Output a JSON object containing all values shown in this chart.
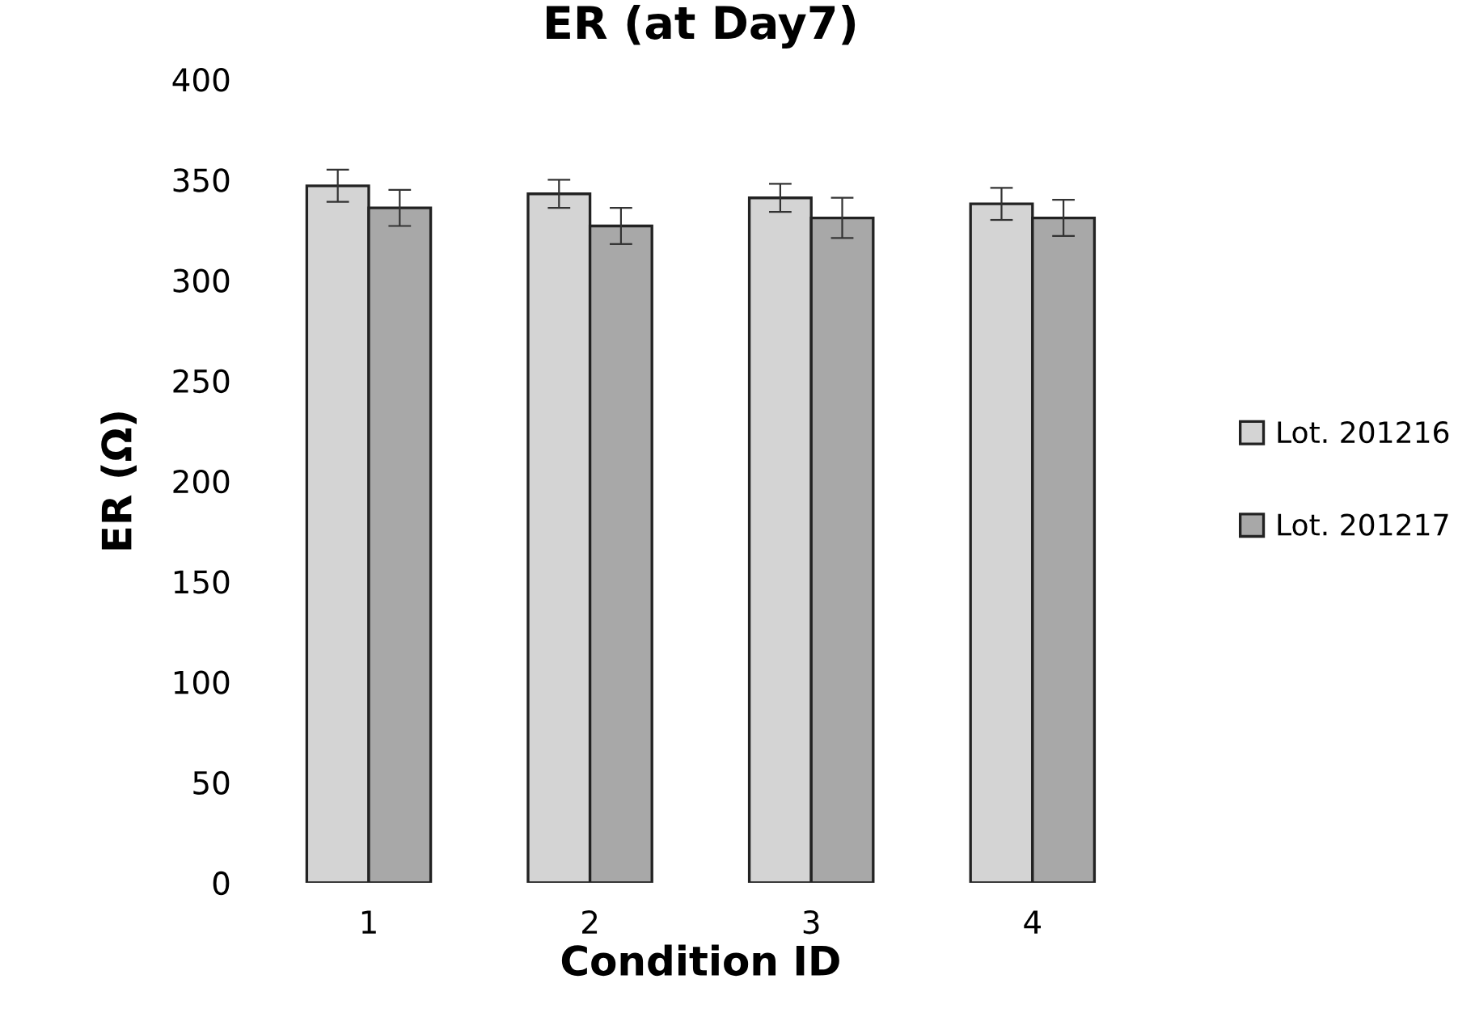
{
  "chart_data": {
    "type": "bar",
    "title": "ER (at Day7)",
    "xlabel": "Condition ID",
    "ylabel": "ER (Ω)",
    "categories": [
      "1",
      "2",
      "3",
      "4"
    ],
    "series": [
      {
        "name": "Lot. 201216",
        "color": "#d4d4d4",
        "values": [
          347,
          343,
          341,
          338
        ],
        "errors": [
          8,
          7,
          7,
          8
        ]
      },
      {
        "name": "Lot. 201217",
        "color": "#a8a8a8",
        "values": [
          336,
          327,
          331,
          331
        ],
        "errors": [
          9,
          9,
          10,
          9
        ]
      }
    ],
    "ylim": [
      0,
      400
    ],
    "yticks": [
      0,
      50,
      100,
      150,
      200,
      250,
      300,
      350,
      400
    ],
    "grid": false,
    "legend": "right"
  }
}
